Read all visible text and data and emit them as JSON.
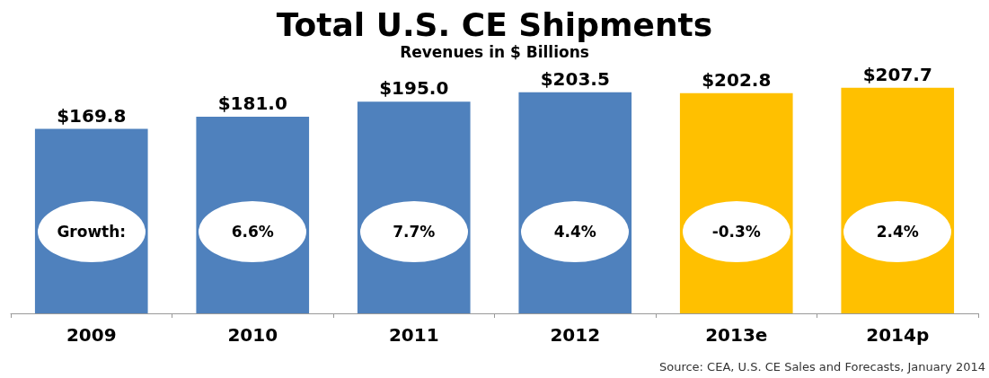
{
  "chart_data": {
    "type": "bar",
    "title": "Total U.S. CE Shipments",
    "subtitle": "Revenues in $ Billions",
    "categories": [
      "2009",
      "2010",
      "2011",
      "2012",
      "2013e",
      "2014p"
    ],
    "values": [
      169.8,
      181.0,
      195.0,
      203.5,
      202.8,
      207.7
    ],
    "colors": [
      "#4f81bd",
      "#4f81bd",
      "#4f81bd",
      "#4f81bd",
      "#ffc000",
      "#ffc000"
    ],
    "value_labels": [
      "$169.8",
      "$181.0",
      "$195.0",
      "$203.5",
      "$202.8",
      "$207.7"
    ],
    "ylim": [
      0,
      210
    ],
    "annotations": [
      "Growth:",
      "6.6%",
      "7.7%",
      "4.4%",
      "-0.3%",
      "2.4%",
      "Source: CEA, U.S. CE Sales and Forecasts, January 2014"
    ]
  }
}
